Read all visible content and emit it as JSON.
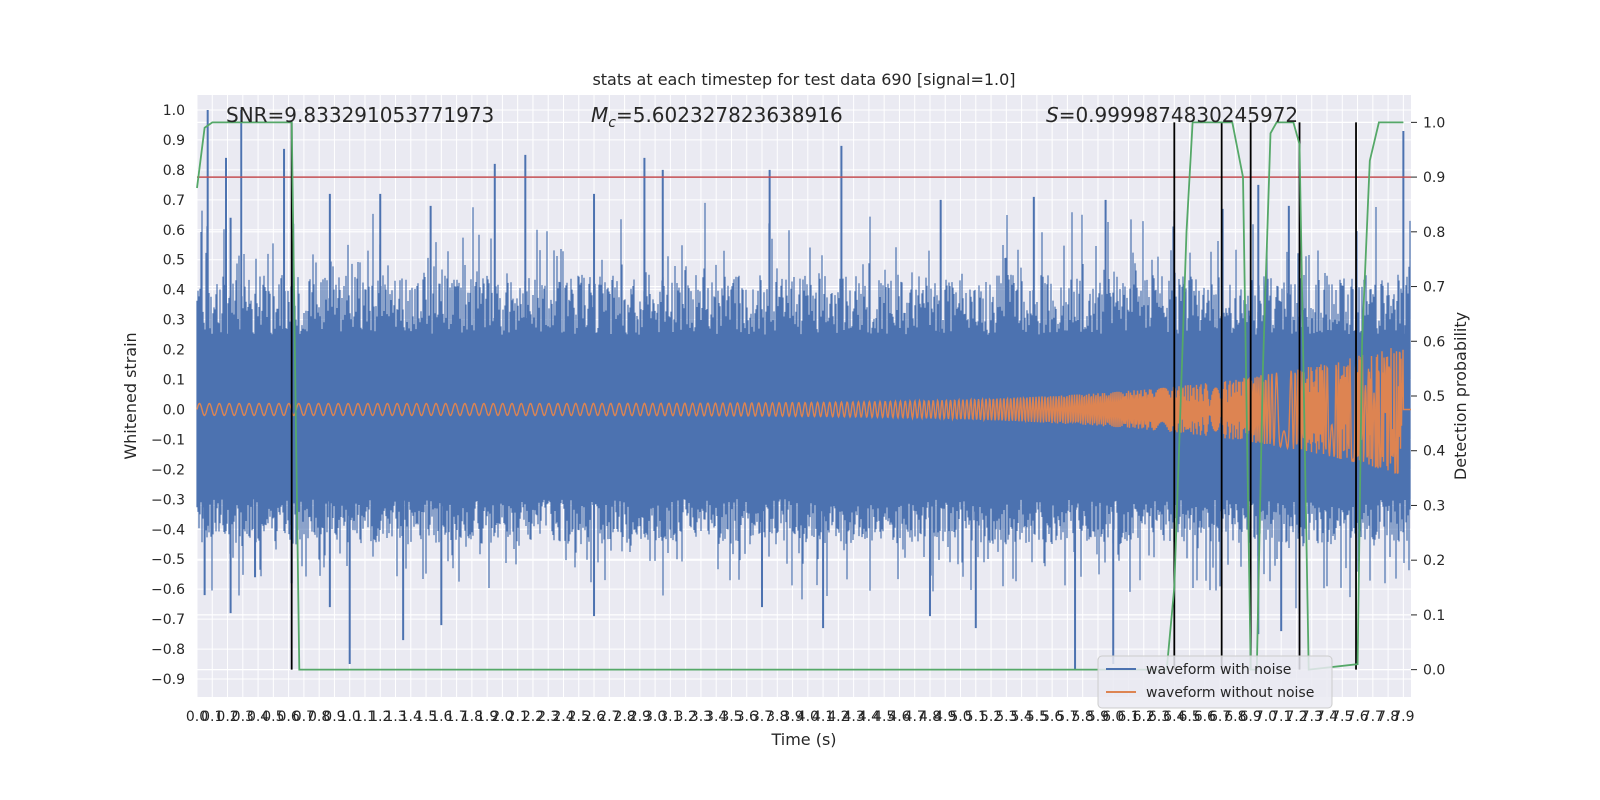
{
  "chart_data": {
    "type": "line",
    "title": "stats at each timestep for test data 690 [signal=1.0]",
    "xlabel": "Time (s)",
    "ylabel": "Whitened strain",
    "y2label": "Detection probability",
    "xlim": [
      0.0,
      7.95
    ],
    "ylim": [
      -0.96,
      1.05
    ],
    "y2lim": [
      -0.05,
      1.05
    ],
    "xticks": [
      "0.0",
      "0.1",
      "0.2",
      "0.3",
      "0.4",
      "0.5",
      "0.6",
      "0.7",
      "0.8",
      "0.9",
      "1.0",
      "1.1",
      "1.2",
      "1.3",
      "1.4",
      "1.5",
      "1.6",
      "1.7",
      "1.8",
      "1.9",
      "2.0",
      "2.1",
      "2.2",
      "2.3",
      "2.4",
      "2.5",
      "2.6",
      "2.7",
      "2.8",
      "2.9",
      "3.0",
      "3.1",
      "3.2",
      "3.3",
      "3.4",
      "3.5",
      "3.6",
      "3.7",
      "3.8",
      "3.9",
      "4.0",
      "4.1",
      "4.2",
      "4.3",
      "4.4",
      "4.5",
      "4.6",
      "4.7",
      "4.8",
      "4.9",
      "5.0",
      "5.1",
      "5.2",
      "5.3",
      "5.4",
      "5.5",
      "5.6",
      "5.7",
      "5.8",
      "5.9",
      "6.0",
      "6.1",
      "6.2",
      "6.3",
      "6.4",
      "6.5",
      "6.6",
      "6.7",
      "6.8",
      "6.9",
      "7.0",
      "7.1",
      "7.2",
      "7.3",
      "7.4",
      "7.5",
      "7.6",
      "7.7",
      "7.8",
      "7.9"
    ],
    "yticks": [
      "-0.9",
      "-0.8",
      "-0.7",
      "-0.6",
      "-0.5",
      "-0.4",
      "-0.3",
      "-0.2",
      "-0.1",
      "0.0",
      "0.1",
      "0.2",
      "0.3",
      "0.4",
      "0.5",
      "0.6",
      "0.7",
      "0.8",
      "0.9",
      "1.0"
    ],
    "y2ticks": [
      "0.0",
      "0.1",
      "0.2",
      "0.3",
      "0.4",
      "0.5",
      "0.6",
      "0.7",
      "0.8",
      "0.9",
      "1.0"
    ],
    "grid": true,
    "legend_position": "lower-right",
    "colors": {
      "noise": "#4c72b0",
      "clean": "#dd8452",
      "prob": "#55a868",
      "threshold": "#c44e52",
      "marker": "#000000",
      "background": "#eaeaf2"
    },
    "annotations": {
      "snr": "SNR=9.833291053771973",
      "mc_symbol": "M",
      "mc_sub": "c",
      "mc_value": "=5.602327823638916",
      "s_symbol": "S",
      "s_value": "=0.9999874830245972"
    },
    "series": [
      {
        "name": "waveform with noise",
        "noise_envelope_note": "",
        "spikes": [
          [
            0.07,
            1.0
          ],
          [
            0.19,
            0.84
          ],
          [
            0.22,
            0.64
          ],
          [
            0.29,
            1.0
          ],
          [
            0.57,
            0.87
          ],
          [
            0.63,
            0.62
          ],
          [
            0.87,
            0.72
          ],
          [
            1.2,
            0.72
          ],
          [
            1.53,
            0.68
          ],
          [
            1.95,
            0.82
          ],
          [
            2.15,
            0.85
          ],
          [
            2.6,
            0.72
          ],
          [
            2.93,
            0.84
          ],
          [
            3.05,
            0.8
          ],
          [
            3.75,
            0.8
          ],
          [
            4.22,
            0.88
          ],
          [
            4.87,
            0.7
          ],
          [
            5.48,
            0.71
          ],
          [
            5.95,
            0.7
          ],
          [
            6.95,
            0.75
          ],
          [
            7.15,
            0.68
          ],
          [
            7.9,
            0.93
          ],
          [
            0.05,
            -0.62
          ],
          [
            0.22,
            -0.68
          ],
          [
            0.38,
            -0.56
          ],
          [
            0.62,
            -0.58
          ],
          [
            0.87,
            -0.66
          ],
          [
            1.0,
            -0.85
          ],
          [
            1.35,
            -0.77
          ],
          [
            1.6,
            -0.72
          ],
          [
            2.6,
            -0.69
          ],
          [
            3.7,
            -0.66
          ],
          [
            4.1,
            -0.73
          ],
          [
            4.8,
            -0.69
          ],
          [
            5.1,
            -0.73
          ],
          [
            5.75,
            -0.87
          ],
          [
            6.0,
            -0.85
          ],
          [
            6.95,
            -0.75
          ],
          [
            7.1,
            -0.74
          ]
        ]
      },
      {
        "name": "waveform without noise",
        "amplitude_start": 0.02,
        "amplitude_end": 0.22,
        "merger_time": 7.9
      },
      {
        "name": "detection probability",
        "points": [
          [
            0.0,
            0.88
          ],
          [
            0.05,
            0.99
          ],
          [
            0.1,
            1.0
          ],
          [
            0.62,
            1.0
          ],
          [
            0.67,
            0.0
          ],
          [
            0.72,
            0.0
          ],
          [
            6.35,
            0.0
          ],
          [
            6.4,
            0.15
          ],
          [
            6.48,
            0.8
          ],
          [
            6.52,
            1.0
          ],
          [
            6.78,
            1.0
          ],
          [
            6.85,
            0.9
          ],
          [
            6.9,
            0.0
          ],
          [
            6.94,
            0.0
          ],
          [
            6.98,
            0.55
          ],
          [
            7.03,
            0.98
          ],
          [
            7.07,
            1.0
          ],
          [
            7.18,
            1.0
          ],
          [
            7.22,
            0.96
          ],
          [
            7.28,
            0.0
          ],
          [
            7.6,
            0.01
          ],
          [
            7.63,
            0.6
          ],
          [
            7.68,
            0.93
          ],
          [
            7.74,
            1.0
          ],
          [
            7.9,
            1.0
          ]
        ]
      }
    ],
    "threshold_prob": 0.9,
    "vertical_markers": [
      {
        "x": 0.62,
        "y0": 0.0,
        "y1": 1.0
      },
      {
        "x": 6.4,
        "y0": 0.0,
        "y1": 1.0
      },
      {
        "x": 6.71,
        "y0": 0.0,
        "y1": 1.0
      },
      {
        "x": 6.9,
        "y0": 0.0,
        "y1": 1.0
      },
      {
        "x": 7.22,
        "y0": 0.0,
        "y1": 1.0
      },
      {
        "x": 7.59,
        "y0": 0.0,
        "y1": 1.0
      }
    ]
  }
}
